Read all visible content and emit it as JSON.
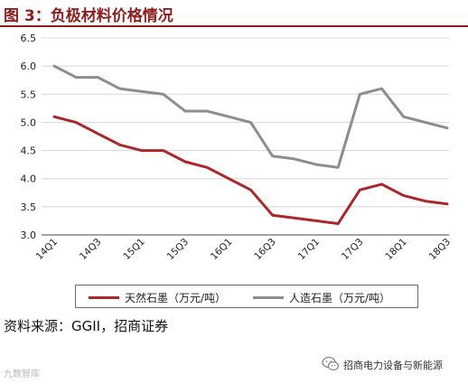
{
  "header": {
    "title": "图 3：负极材料价格情况"
  },
  "source": "资料来源：GGII，招商证券",
  "watermark": {
    "left_text": "九数智库",
    "right_text": "招商电力设备与新能源",
    "logo_icon": "wechat-icon"
  },
  "colors": {
    "series_natural": "#a8282c",
    "series_artificial": "#8d8d8d",
    "title": "#8b1f1f",
    "grid": "#d8d8d8"
  },
  "chart_data": {
    "type": "line",
    "title": "",
    "xlabel": "",
    "ylabel": "",
    "ylim": [
      3.0,
      6.5
    ],
    "yticks": [
      "3.0",
      "3.5",
      "4.0",
      "4.5",
      "5.0",
      "5.5",
      "6.0",
      "6.5"
    ],
    "grid": "horizontal",
    "legend_position": "bottom",
    "x": [
      "14Q1",
      "",
      "14Q3",
      "",
      "15Q1",
      "",
      "15Q3",
      "",
      "16Q1",
      "",
      "16Q3",
      "",
      "17Q1",
      "",
      "17Q3",
      "",
      "18Q1",
      "",
      "18Q3"
    ],
    "categories": [
      "14Q1",
      "14Q2",
      "14Q3",
      "14Q4",
      "15Q1",
      "15Q2",
      "15Q3",
      "15Q4",
      "16Q1",
      "16Q2",
      "16Q3",
      "16Q4",
      "17Q1",
      "17Q2",
      "17Q3",
      "17Q4",
      "18Q1",
      "18Q2",
      "18Q3"
    ],
    "series": [
      {
        "name": "天然石墨（万元/吨）",
        "values": [
          5.1,
          5.0,
          4.8,
          4.6,
          4.5,
          4.5,
          4.3,
          4.2,
          4.0,
          3.8,
          3.35,
          3.3,
          3.25,
          3.2,
          3.8,
          3.9,
          3.7,
          3.6,
          3.55
        ]
      },
      {
        "name": "人造石墨（万元/吨）",
        "values": [
          6.0,
          5.8,
          5.8,
          5.6,
          5.55,
          5.5,
          5.2,
          5.2,
          5.1,
          5.0,
          4.4,
          4.35,
          4.25,
          4.2,
          5.5,
          5.6,
          5.1,
          5.0,
          4.9
        ]
      }
    ]
  }
}
